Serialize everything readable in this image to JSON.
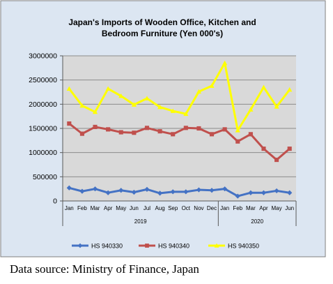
{
  "chart_data": {
    "type": "line",
    "title": "Japan's Imports of  Wooden  Office, Kitchen and Bedroom Furniture (Yen 000's)",
    "title_lines": [
      "Japan's Imports of  Wooden  Office, Kitchen and",
      "Bedroom Furniture (Yen 000's)"
    ],
    "categories": [
      "Jan",
      "Feb",
      "Mar",
      "Apr",
      "May",
      "Jun",
      "Jul",
      "Aug",
      "Sep",
      "Oct",
      "Nov",
      "Dec",
      "Jan",
      "Feb",
      "Mar",
      "Apr",
      "May",
      "Jun"
    ],
    "year_groups": [
      {
        "label": "2019",
        "start": 0,
        "end": 11
      },
      {
        "label": "2020",
        "start": 12,
        "end": 17
      }
    ],
    "ylim": [
      0,
      3000000
    ],
    "yticks": [
      0,
      500000,
      1000000,
      1500000,
      2000000,
      2500000,
      3000000
    ],
    "ytick_labels": [
      "0",
      "500000",
      "1000000",
      "1500000",
      "2000000",
      "2500000",
      "3000000"
    ],
    "grid": true,
    "legend_position": "bottom",
    "series": [
      {
        "name": "HS 940330",
        "color": "#4472C4",
        "marker": "diamond",
        "values": [
          270000,
          200000,
          250000,
          170000,
          220000,
          180000,
          240000,
          160000,
          190000,
          190000,
          230000,
          220000,
          250000,
          100000,
          170000,
          170000,
          210000,
          170000
        ]
      },
      {
        "name": "HS 940340",
        "color": "#C0504D",
        "marker": "square",
        "values": [
          1600000,
          1390000,
          1530000,
          1480000,
          1420000,
          1410000,
          1510000,
          1440000,
          1380000,
          1510000,
          1500000,
          1380000,
          1480000,
          1230000,
          1380000,
          1080000,
          850000,
          1080000
        ]
      },
      {
        "name": "HS 940350",
        "color": "#FFFF00",
        "marker": "triangle",
        "values": [
          2320000,
          1970000,
          1840000,
          2320000,
          2170000,
          1990000,
          2120000,
          1940000,
          1860000,
          1800000,
          2260000,
          2380000,
          2850000,
          1460000,
          1890000,
          2350000,
          1950000,
          2300000
        ]
      }
    ]
  },
  "caption": "Data source: Ministry of Finance, Japan"
}
